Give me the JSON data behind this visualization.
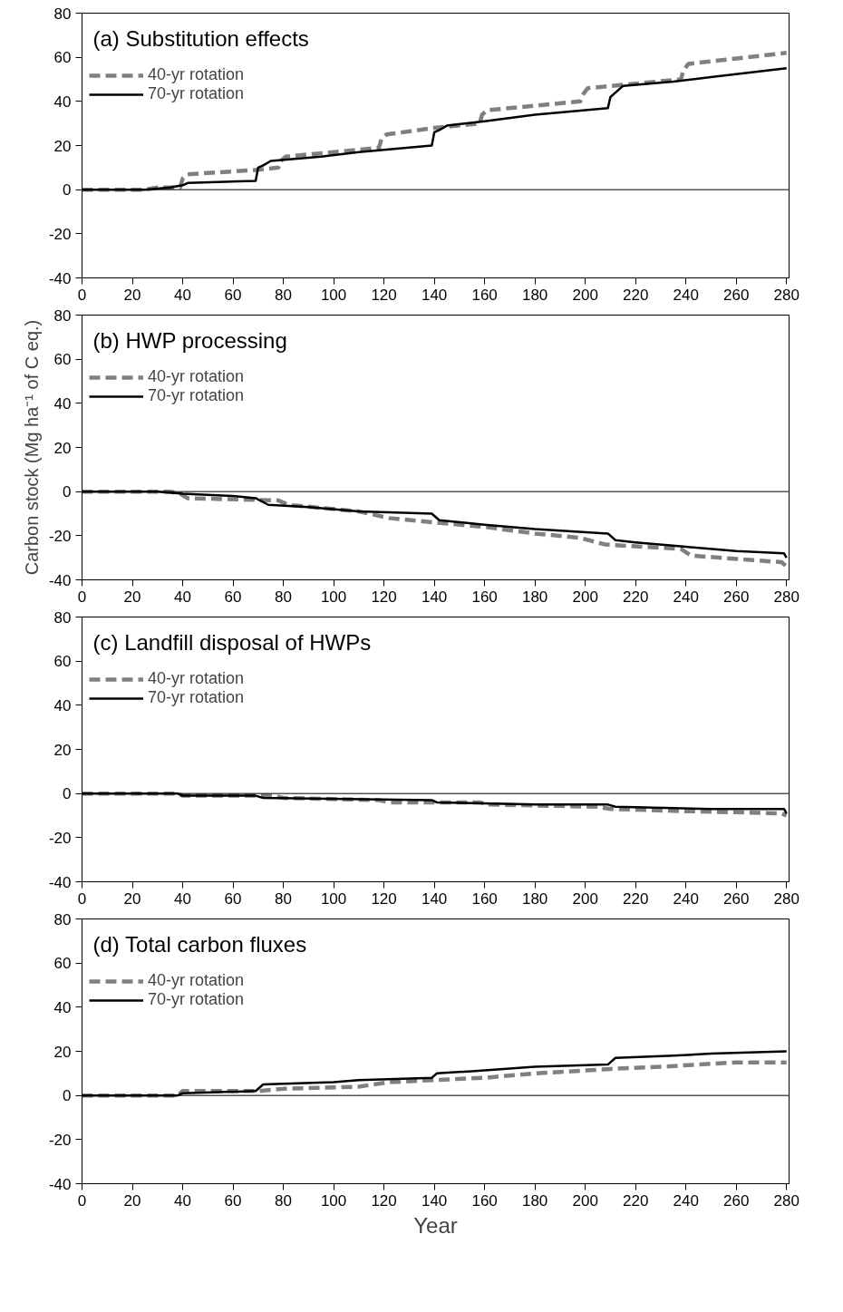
{
  "chart_data": [
    {
      "type": "line",
      "title": "(a) Substitution effects",
      "xlim": [
        0,
        281
      ],
      "ylim": [
        -40,
        80
      ],
      "xticks": [
        0,
        20,
        40,
        60,
        80,
        100,
        120,
        140,
        160,
        180,
        200,
        220,
        240,
        260,
        280
      ],
      "yticks": [
        -40,
        -20,
        0,
        20,
        40,
        60,
        80
      ],
      "grid": false,
      "legend": "top left",
      "ref_lines": [
        {
          "axis": "y",
          "value": 0
        }
      ],
      "series": [
        {
          "name": "40-yr rotation",
          "color": "#808080",
          "line_style": "dashed",
          "x": [
            0,
            25,
            30,
            39,
            40,
            42,
            70,
            78,
            79,
            81,
            100,
            118,
            119,
            121,
            140,
            158,
            159,
            161,
            198,
            199,
            201,
            238,
            239,
            241,
            280
          ],
          "values": [
            0,
            0,
            1,
            1,
            5,
            7,
            9,
            10,
            13,
            15,
            17,
            19,
            23,
            25,
            28,
            30,
            34,
            36,
            40,
            43,
            46,
            50,
            54,
            57,
            62
          ]
        },
        {
          "name": "70-yr rotation",
          "color": "#000000",
          "line_style": "solid",
          "x": [
            0,
            25,
            35,
            40,
            42,
            69,
            70,
            72,
            75,
            95,
            110,
            139,
            140,
            142,
            145,
            160,
            180,
            209,
            210,
            212,
            215,
            235,
            250,
            280
          ],
          "values": [
            0,
            0,
            1,
            2,
            3,
            4,
            10,
            11,
            13,
            15,
            17,
            20,
            26,
            27,
            29,
            31,
            34,
            37,
            42,
            44,
            47,
            49,
            51,
            55
          ]
        }
      ]
    },
    {
      "type": "line",
      "title": "(b) HWP processing",
      "ylabel": "Carbon stock (Mg ha⁻¹ of C eq.)",
      "xlim": [
        0,
        281
      ],
      "ylim": [
        -40,
        80
      ],
      "xticks": [
        0,
        20,
        40,
        60,
        80,
        100,
        120,
        140,
        160,
        180,
        200,
        220,
        240,
        260,
        280
      ],
      "yticks": [
        -40,
        -20,
        0,
        20,
        40,
        60,
        80
      ],
      "grid": false,
      "legend": "top left",
      "ref_lines": [
        {
          "axis": "y",
          "value": 0
        }
      ],
      "series": [
        {
          "name": "40-yr rotation",
          "color": "#808080",
          "line_style": "dashed",
          "x": [
            0,
            35,
            39,
            42,
            78,
            82,
            110,
            122,
            140,
            160,
            180,
            198,
            208,
            238,
            242,
            278,
            280
          ],
          "values": [
            0,
            0,
            -1,
            -3,
            -4,
            -6,
            -9,
            -12,
            -14,
            -16,
            -19,
            -21,
            -24,
            -26,
            -29,
            -32,
            -34
          ]
        },
        {
          "name": "70-yr rotation",
          "color": "#000000",
          "line_style": "solid",
          "x": [
            0,
            30,
            40,
            60,
            69,
            74,
            90,
            110,
            139,
            142,
            160,
            180,
            209,
            212,
            220,
            240,
            260,
            279,
            280
          ],
          "values": [
            0,
            0,
            -1,
            -2,
            -3,
            -6,
            -7,
            -9,
            -10,
            -13,
            -15,
            -17,
            -19,
            -22,
            -23,
            -25,
            -27,
            -28,
            -30
          ]
        }
      ]
    },
    {
      "type": "line",
      "title": "(c) Landfill disposal of HWPs",
      "xlim": [
        0,
        281
      ],
      "ylim": [
        -40,
        80
      ],
      "xticks": [
        0,
        20,
        40,
        60,
        80,
        100,
        120,
        140,
        160,
        180,
        200,
        220,
        240,
        260,
        280
      ],
      "yticks": [
        -40,
        -20,
        0,
        20,
        40,
        60,
        80
      ],
      "grid": false,
      "legend": "top left",
      "ref_lines": [
        {
          "axis": "y",
          "value": 0
        }
      ],
      "series": [
        {
          "name": "40-yr rotation",
          "color": "#808080",
          "line_style": "dashed",
          "x": [
            0,
            38,
            40,
            76,
            80,
            118,
            122,
            158,
            162,
            205,
            210,
            240,
            278,
            280
          ],
          "values": [
            0,
            0,
            -1,
            -1,
            -2,
            -3,
            -4,
            -4,
            -5,
            -6,
            -7,
            -8,
            -9,
            -10
          ]
        },
        {
          "name": "70-yr rotation",
          "color": "#000000",
          "line_style": "solid",
          "x": [
            0,
            38,
            40,
            69,
            72,
            139,
            141,
            180,
            209,
            212,
            250,
            279,
            280
          ],
          "values": [
            0,
            0,
            -1,
            -1,
            -2,
            -3,
            -4,
            -5,
            -5,
            -6,
            -7,
            -7,
            -9
          ]
        }
      ]
    },
    {
      "type": "line",
      "title": "(d) Total carbon fluxes",
      "xlabel": "Year",
      "xlim": [
        0,
        281
      ],
      "ylim": [
        -40,
        80
      ],
      "xticks": [
        0,
        20,
        40,
        60,
        80,
        100,
        120,
        140,
        160,
        180,
        200,
        220,
        240,
        260,
        280
      ],
      "yticks": [
        -40,
        -20,
        0,
        20,
        40,
        60,
        80
      ],
      "grid": false,
      "legend": "top left",
      "ref_lines": [
        {
          "axis": "y",
          "value": 0
        }
      ],
      "series": [
        {
          "name": "40-yr rotation",
          "color": "#808080",
          "line_style": "dashed",
          "x": [
            0,
            38,
            40,
            70,
            80,
            110,
            122,
            140,
            160,
            180,
            210,
            230,
            260,
            280
          ],
          "values": [
            0,
            0,
            2,
            2,
            3,
            4,
            6,
            7,
            8,
            10,
            12,
            13,
            15,
            15
          ]
        },
        {
          "name": "70-yr rotation",
          "color": "#000000",
          "line_style": "solid",
          "x": [
            0,
            38,
            40,
            69,
            72,
            100,
            110,
            139,
            141,
            155,
            180,
            209,
            212,
            235,
            250,
            280
          ],
          "values": [
            0,
            0,
            1,
            2,
            5,
            6,
            7,
            8,
            10,
            11,
            13,
            14,
            17,
            18,
            19,
            20
          ]
        }
      ]
    }
  ]
}
